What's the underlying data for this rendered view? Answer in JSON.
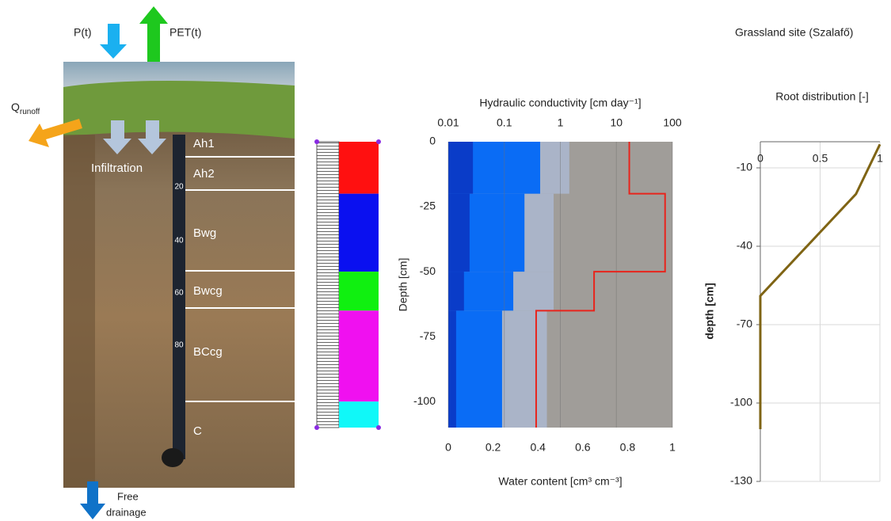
{
  "header": {
    "title": "Grassland site (Szalafő)"
  },
  "photo": {
    "precipitation": "P(t)",
    "evapotranspiration": "PET(t)",
    "runoff": "Q",
    "runoff_subscript": "runoff",
    "infiltration": "Infiltration",
    "drainage": [
      "Free",
      "drainage"
    ],
    "horizons": [
      "Ah1",
      "Ah2",
      "Bwg",
      "Bwcg",
      "BCcg",
      "C"
    ],
    "ruler_labels": [
      "20",
      "40",
      "60",
      "80"
    ]
  },
  "discretization": {
    "depths": [
      0,
      -20,
      -50,
      -65,
      -100,
      -110
    ],
    "colors": [
      "#ff1010",
      "#0a10f0",
      "#10f010",
      "#f010f0",
      "#10f8f8"
    ]
  },
  "chart_data": [
    {
      "type": "step-profile",
      "title": "Hydraulic conductivity [cm day⁻¹]",
      "xlabel": "Water content [cm³ cm⁻³]",
      "ylabel": "Depth [cm]",
      "layer_depths": [
        0,
        -20,
        -50,
        -65,
        -110
      ],
      "xlim": [
        0,
        1
      ],
      "xticks": [
        0,
        0.2,
        0.4,
        0.6,
        0.8,
        1
      ],
      "ylim": [
        -110,
        0
      ],
      "yticks": [
        0,
        -25,
        -50,
        -75,
        -100
      ],
      "x2lim": [
        0.01,
        100
      ],
      "x2ticks": [
        0.01,
        0.1,
        1,
        10,
        100
      ],
      "x2log": true,
      "x2grid": true,
      "background": "#a09d99",
      "series": [
        {
          "color": "#0a3cc8",
          "values": [
            0.11,
            0.095,
            0.07,
            0.035
          ]
        },
        {
          "color": "#0a6cf5",
          "values": [
            0.41,
            0.34,
            0.29,
            0.24
          ]
        },
        {
          "color": "#aab4c8",
          "values": [
            0.54,
            0.47,
            0.47,
            0.44
          ]
        },
        {
          "color": "#e8241c",
          "axis": "x2",
          "values": [
            17,
            74,
            4,
            0.37
          ]
        }
      ]
    },
    {
      "type": "line",
      "title": "Root distribution [-]",
      "ylabel": "depth [cm]",
      "x": [
        1,
        0.8,
        0,
        0
      ],
      "values": [
        -1,
        -20,
        -59,
        -110
      ],
      "color": "#7f6414",
      "xlim": [
        0,
        1
      ],
      "xticks": [
        0,
        0.5,
        1
      ],
      "ylim": [
        -130,
        0
      ],
      "yticks": [
        -10,
        -40,
        -70,
        -100,
        -130
      ],
      "grid": true
    }
  ]
}
